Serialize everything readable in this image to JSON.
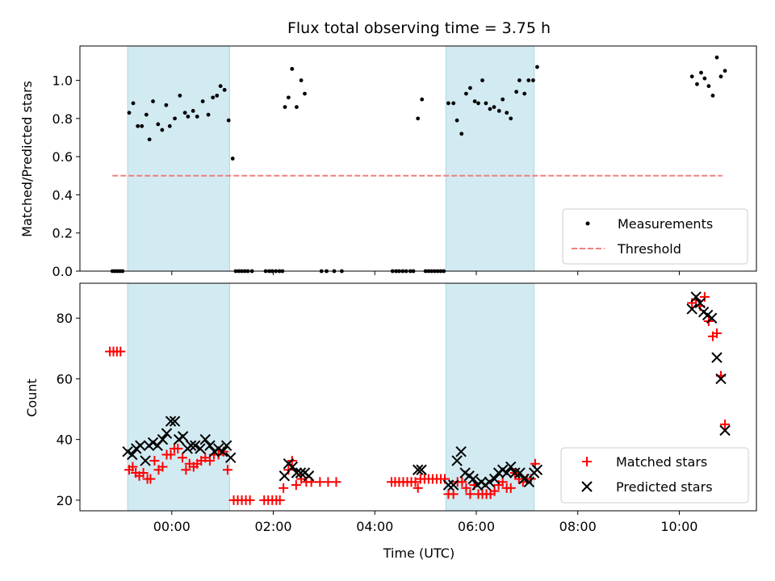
{
  "colors": {
    "shade": "#add8e6",
    "measurement": "#000000",
    "threshold": "#f08080",
    "matched": "#ff0000",
    "predicted": "#000000"
  },
  "chart_data": [
    {
      "type": "scatter",
      "title": "Flux total observing time = 3.75 h",
      "xlabel": "",
      "ylabel": "Matched/Predicted stars",
      "xlim": [
        -1.81,
        11.52
      ],
      "ylim": [
        0,
        1.18
      ],
      "xticks": [
        0,
        2,
        4,
        6,
        8,
        10
      ],
      "yticks": [
        0.0,
        0.2,
        0.4,
        0.6,
        0.8,
        1.0
      ],
      "ytick_labels": [
        "0.0",
        "0.2",
        "0.4",
        "0.6",
        "0.8",
        "1.0"
      ],
      "legend_position": "lower-right",
      "shaded_intervals": [
        [
          -0.87,
          1.14
        ],
        [
          5.4,
          7.14
        ]
      ],
      "threshold": {
        "name": "Threshold",
        "y": 0.5,
        "x_range": [
          -1.17,
          10.85
        ]
      },
      "series": [
        {
          "name": "Measurements",
          "marker": "dot",
          "points": [
            [
              -1.17,
              0
            ],
            [
              -1.12,
              0
            ],
            [
              -1.07,
              0
            ],
            [
              -1.02,
              0
            ],
            [
              -0.97,
              0
            ],
            [
              -0.84,
              0.83
            ],
            [
              -0.76,
              0.88
            ],
            [
              -0.67,
              0.76
            ],
            [
              -0.59,
              0.76
            ],
            [
              -0.5,
              0.82
            ],
            [
              -0.44,
              0.69
            ],
            [
              -0.37,
              0.89
            ],
            [
              -0.27,
              0.77
            ],
            [
              -0.19,
              0.74
            ],
            [
              -0.11,
              0.87
            ],
            [
              -0.04,
              0.76
            ],
            [
              0.06,
              0.8
            ],
            [
              0.16,
              0.92
            ],
            [
              0.26,
              0.83
            ],
            [
              0.32,
              0.81
            ],
            [
              0.42,
              0.84
            ],
            [
              0.5,
              0.81
            ],
            [
              0.61,
              0.89
            ],
            [
              0.72,
              0.82
            ],
            [
              0.81,
              0.91
            ],
            [
              0.89,
              0.92
            ],
            [
              0.96,
              0.97
            ],
            [
              1.04,
              0.95
            ],
            [
              1.12,
              0.79
            ],
            [
              1.2,
              0.59
            ],
            [
              1.26,
              0
            ],
            [
              1.32,
              0
            ],
            [
              1.38,
              0
            ],
            [
              1.44,
              0
            ],
            [
              1.5,
              0
            ],
            [
              1.58,
              0
            ],
            [
              1.85,
              0
            ],
            [
              1.92,
              0
            ],
            [
              1.98,
              0
            ],
            [
              2.05,
              0
            ],
            [
              2.12,
              0
            ],
            [
              2.18,
              0
            ],
            [
              2.23,
              0.86
            ],
            [
              2.3,
              0.91
            ],
            [
              2.37,
              1.06
            ],
            [
              2.46,
              0.86
            ],
            [
              2.55,
              1.0
            ],
            [
              2.62,
              0.93
            ],
            [
              2.95,
              0
            ],
            [
              3.05,
              0
            ],
            [
              3.2,
              0
            ],
            [
              3.35,
              0
            ],
            [
              4.35,
              0
            ],
            [
              4.42,
              0
            ],
            [
              4.48,
              0
            ],
            [
              4.55,
              0
            ],
            [
              4.62,
              0
            ],
            [
              4.7,
              0
            ],
            [
              4.76,
              0
            ],
            [
              4.85,
              0.8
            ],
            [
              4.93,
              0.9
            ],
            [
              5.0,
              0
            ],
            [
              5.06,
              0
            ],
            [
              5.12,
              0
            ],
            [
              5.18,
              0
            ],
            [
              5.24,
              0
            ],
            [
              5.3,
              0
            ],
            [
              5.36,
              0
            ],
            [
              5.45,
              0.88
            ],
            [
              5.55,
              0.88
            ],
            [
              5.62,
              0.79
            ],
            [
              5.71,
              0.72
            ],
            [
              5.8,
              0.93
            ],
            [
              5.88,
              0.96
            ],
            [
              5.97,
              0.89
            ],
            [
              6.04,
              0.88
            ],
            [
              6.12,
              1.0
            ],
            [
              6.19,
              0.88
            ],
            [
              6.27,
              0.85
            ],
            [
              6.35,
              0.86
            ],
            [
              6.45,
              0.84
            ],
            [
              6.52,
              0.9
            ],
            [
              6.6,
              0.83
            ],
            [
              6.68,
              0.8
            ],
            [
              6.79,
              0.94
            ],
            [
              6.85,
              1.0
            ],
            [
              6.95,
              0.93
            ],
            [
              7.03,
              1.0
            ],
            [
              7.12,
              1.0
            ],
            [
              7.2,
              1.07
            ],
            [
              10.25,
              1.02
            ],
            [
              10.35,
              0.98
            ],
            [
              10.43,
              1.04
            ],
            [
              10.5,
              1.01
            ],
            [
              10.58,
              0.97
            ],
            [
              10.66,
              0.92
            ],
            [
              10.74,
              1.12
            ],
            [
              10.82,
              1.02
            ],
            [
              10.9,
              1.05
            ]
          ]
        }
      ]
    },
    {
      "type": "scatter",
      "title": "",
      "xlabel": "Time (UTC)",
      "ylabel": "Count",
      "xlim": [
        -1.81,
        11.52
      ],
      "ylim": [
        16.5,
        91.5
      ],
      "xticks": [
        0,
        2,
        4,
        6,
        8,
        10
      ],
      "xtick_labels": [
        "00:00",
        "02:00",
        "04:00",
        "06:00",
        "08:00",
        "10:00"
      ],
      "yticks": [
        20,
        40,
        60,
        80
      ],
      "ytick_labels": [
        "20",
        "40",
        "60",
        "80"
      ],
      "legend_position": "lower-right",
      "shaded_intervals": [
        [
          -0.87,
          1.14
        ],
        [
          5.4,
          7.14
        ]
      ],
      "series": [
        {
          "name": "Matched stars",
          "marker": "plus",
          "points": [
            [
              -1.22,
              69
            ],
            [
              -1.15,
              69
            ],
            [
              -1.08,
              69
            ],
            [
              -1.01,
              69
            ],
            [
              -0.84,
              30
            ],
            [
              -0.77,
              31
            ],
            [
              -0.71,
              29
            ],
            [
              -0.64,
              28
            ],
            [
              -0.56,
              29
            ],
            [
              -0.48,
              27
            ],
            [
              -0.42,
              27
            ],
            [
              -0.34,
              33
            ],
            [
              -0.26,
              30
            ],
            [
              -0.18,
              31
            ],
            [
              -0.1,
              35
            ],
            [
              -0.02,
              35
            ],
            [
              0.05,
              37
            ],
            [
              0.12,
              37
            ],
            [
              0.21,
              34
            ],
            [
              0.28,
              30
            ],
            [
              0.35,
              32
            ],
            [
              0.43,
              31
            ],
            [
              0.5,
              32
            ],
            [
              0.58,
              33
            ],
            [
              0.66,
              34
            ],
            [
              0.75,
              33
            ],
            [
              0.83,
              35
            ],
            [
              0.92,
              35
            ],
            [
              1.02,
              36
            ],
            [
              1.1,
              30
            ],
            [
              1.22,
              20
            ],
            [
              1.3,
              20
            ],
            [
              1.38,
              20
            ],
            [
              1.46,
              20
            ],
            [
              1.54,
              20
            ],
            [
              1.82,
              20
            ],
            [
              1.9,
              20
            ],
            [
              1.98,
              20
            ],
            [
              2.06,
              20
            ],
            [
              2.13,
              20
            ],
            [
              2.2,
              24
            ],
            [
              2.3,
              30
            ],
            [
              2.37,
              33
            ],
            [
              2.45,
              25
            ],
            [
              2.55,
              27
            ],
            [
              2.65,
              26
            ],
            [
              2.75,
              26
            ],
            [
              2.92,
              26
            ],
            [
              3.08,
              26
            ],
            [
              3.24,
              26
            ],
            [
              4.33,
              26
            ],
            [
              4.4,
              26
            ],
            [
              4.48,
              26
            ],
            [
              4.56,
              26
            ],
            [
              4.64,
              26
            ],
            [
              4.72,
              26
            ],
            [
              4.8,
              26
            ],
            [
              4.85,
              24
            ],
            [
              4.9,
              27
            ],
            [
              4.98,
              27
            ],
            [
              5.06,
              27
            ],
            [
              5.14,
              27
            ],
            [
              5.22,
              27
            ],
            [
              5.3,
              27
            ],
            [
              5.38,
              27
            ],
            [
              5.45,
              22
            ],
            [
              5.55,
              22
            ],
            [
              5.63,
              26
            ],
            [
              5.72,
              26
            ],
            [
              5.8,
              24
            ],
            [
              5.88,
              22
            ],
            [
              5.96,
              25
            ],
            [
              6.04,
              22
            ],
            [
              6.12,
              22
            ],
            [
              6.2,
              22
            ],
            [
              6.28,
              22
            ],
            [
              6.36,
              23
            ],
            [
              6.44,
              25
            ],
            [
              6.52,
              26
            ],
            [
              6.6,
              24
            ],
            [
              6.68,
              24
            ],
            [
              6.76,
              29
            ],
            [
              6.84,
              27
            ],
            [
              6.92,
              26
            ],
            [
              7.0,
              27
            ],
            [
              7.08,
              27
            ],
            [
              7.16,
              32
            ],
            [
              10.25,
              85
            ],
            [
              10.33,
              86
            ],
            [
              10.41,
              84
            ],
            [
              10.5,
              87
            ],
            [
              10.58,
              79
            ],
            [
              10.66,
              74
            ],
            [
              10.74,
              75
            ],
            [
              10.82,
              61
            ],
            [
              10.9,
              45
            ]
          ]
        },
        {
          "name": "Predicted stars",
          "marker": "x",
          "points": [
            [
              -0.87,
              36
            ],
            [
              -0.78,
              35
            ],
            [
              -0.7,
              37
            ],
            [
              -0.62,
              38
            ],
            [
              -0.52,
              33
            ],
            [
              -0.45,
              38
            ],
            [
              -0.37,
              39
            ],
            [
              -0.28,
              38
            ],
            [
              -0.18,
              40
            ],
            [
              -0.1,
              42
            ],
            [
              -0.02,
              46
            ],
            [
              0.06,
              46
            ],
            [
              0.14,
              40
            ],
            [
              0.22,
              41
            ],
            [
              0.31,
              37
            ],
            [
              0.38,
              38
            ],
            [
              0.46,
              38
            ],
            [
              0.56,
              37
            ],
            [
              0.66,
              40
            ],
            [
              0.75,
              38
            ],
            [
              0.84,
              36
            ],
            [
              0.92,
              37
            ],
            [
              1.0,
              36
            ],
            [
              1.08,
              38
            ],
            [
              1.16,
              34
            ],
            [
              2.22,
              28
            ],
            [
              2.3,
              32
            ],
            [
              2.38,
              31
            ],
            [
              2.46,
              29
            ],
            [
              2.54,
              29
            ],
            [
              2.62,
              29
            ],
            [
              2.7,
              28
            ],
            [
              4.85,
              30
            ],
            [
              4.92,
              30
            ],
            [
              5.45,
              25
            ],
            [
              5.55,
              25
            ],
            [
              5.62,
              33
            ],
            [
              5.7,
              36
            ],
            [
              5.78,
              29
            ],
            [
              5.86,
              28
            ],
            [
              5.94,
              27
            ],
            [
              6.02,
              25
            ],
            [
              6.1,
              26
            ],
            [
              6.18,
              25
            ],
            [
              6.26,
              26
            ],
            [
              6.36,
              27
            ],
            [
              6.44,
              29
            ],
            [
              6.52,
              30
            ],
            [
              6.6,
              29
            ],
            [
              6.68,
              31
            ],
            [
              6.76,
              29
            ],
            [
              6.86,
              29
            ],
            [
              6.94,
              27
            ],
            [
              7.04,
              26
            ],
            [
              7.14,
              29
            ],
            [
              7.2,
              30
            ],
            [
              10.25,
              83
            ],
            [
              10.33,
              87
            ],
            [
              10.41,
              85
            ],
            [
              10.48,
              82
            ],
            [
              10.56,
              81
            ],
            [
              10.64,
              80
            ],
            [
              10.74,
              67
            ],
            [
              10.82,
              60
            ],
            [
              10.9,
              43
            ]
          ]
        }
      ]
    }
  ]
}
